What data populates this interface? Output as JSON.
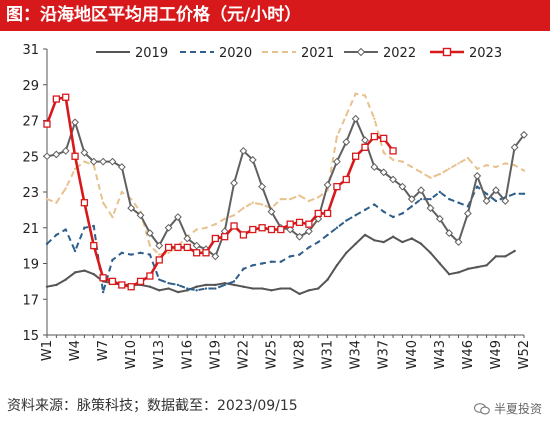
{
  "title": "图：沿海地区平均用工价格（元/小时）",
  "source": "资料来源：脉策科技；数据截至：2023/09/15",
  "watermark": "半夏投资",
  "chart_data": {
    "type": "line",
    "title": "图：沿海地区平均用工价格（元/小时）",
    "xlabel": "",
    "ylabel": "",
    "ylim": [
      15,
      31
    ],
    "yticks": [
      15,
      17,
      19,
      21,
      23,
      25,
      27,
      29,
      31
    ],
    "xlim": [
      1,
      52
    ],
    "xtick_labels": [
      "W1",
      "W4",
      "W7",
      "W10",
      "W13",
      "W16",
      "W19",
      "W22",
      "W25",
      "W28",
      "W31",
      "W34",
      "W37",
      "W40",
      "W43",
      "W46",
      "W49",
      "W52"
    ],
    "legend_position": "top",
    "grid": false,
    "series": [
      {
        "name": "2019",
        "color": "#555555",
        "style": "solid",
        "marker": "none",
        "x": [
          1,
          2,
          3,
          4,
          5,
          6,
          7,
          8,
          9,
          10,
          11,
          12,
          13,
          14,
          15,
          16,
          17,
          18,
          19,
          20,
          21,
          22,
          23,
          24,
          25,
          26,
          27,
          28,
          29,
          30,
          31,
          32,
          33,
          34,
          35,
          36,
          37,
          38,
          39,
          40,
          41,
          42,
          43,
          44,
          45,
          46,
          47,
          48,
          49,
          50,
          51
        ],
        "values": [
          17.7,
          17.8,
          18.1,
          18.5,
          18.6,
          18.4,
          18.0,
          17.9,
          17.8,
          17.8,
          17.8,
          17.7,
          17.5,
          17.6,
          17.4,
          17.5,
          17.7,
          17.8,
          17.8,
          17.9,
          17.8,
          17.7,
          17.6,
          17.6,
          17.5,
          17.6,
          17.6,
          17.3,
          17.5,
          17.6,
          18.1,
          18.9,
          19.6,
          20.1,
          20.6,
          20.3,
          20.2,
          20.5,
          20.2,
          20.4,
          20.1,
          19.6,
          19.0,
          18.4,
          18.5,
          18.7,
          18.8,
          18.9,
          19.4,
          19.4,
          19.7
        ]
      },
      {
        "name": "2020",
        "color": "#2f5f8a",
        "style": "dashed",
        "marker": "none",
        "x": [
          1,
          2,
          3,
          4,
          5,
          6,
          7,
          8,
          9,
          10,
          11,
          12,
          13,
          14,
          15,
          16,
          17,
          18,
          19,
          20,
          21,
          22,
          23,
          24,
          25,
          26,
          27,
          28,
          29,
          30,
          31,
          32,
          33,
          34,
          35,
          36,
          37,
          38,
          39,
          40,
          41,
          42,
          43,
          44,
          45,
          46,
          47,
          48,
          49,
          50,
          51,
          52
        ],
        "values": [
          20.1,
          20.6,
          20.9,
          19.7,
          21.0,
          21.1,
          17.4,
          19.2,
          19.6,
          19.5,
          19.6,
          19.5,
          18.1,
          17.9,
          17.8,
          17.6,
          17.5,
          17.6,
          17.6,
          17.8,
          18.0,
          18.7,
          18.9,
          19.0,
          19.1,
          19.1,
          19.4,
          19.5,
          19.9,
          20.2,
          20.6,
          21.0,
          21.4,
          21.7,
          22.0,
          22.3,
          21.9,
          21.6,
          21.8,
          22.2,
          22.6,
          22.6,
          23.0,
          22.6,
          22.4,
          22.2,
          23.3,
          22.9,
          22.5,
          22.7,
          22.9,
          22.9
        ]
      },
      {
        "name": "2021",
        "color": "#e8c28e",
        "style": "dashed",
        "marker": "none",
        "x": [
          1,
          2,
          3,
          4,
          5,
          6,
          7,
          8,
          9,
          10,
          11,
          12,
          13,
          14,
          15,
          16,
          17,
          18,
          19,
          20,
          21,
          22,
          23,
          24,
          25,
          26,
          27,
          28,
          29,
          30,
          31,
          32,
          33,
          34,
          35,
          36,
          37,
          38,
          39,
          40,
          41,
          42,
          43,
          44,
          45,
          46,
          47,
          48,
          49,
          50,
          51,
          52
        ],
        "values": [
          22.6,
          22.4,
          23.2,
          24.3,
          24.7,
          24.5,
          22.4,
          21.6,
          23.0,
          22.6,
          21.9,
          20.0,
          19.5,
          19.6,
          20.0,
          20.5,
          20.9,
          21.0,
          21.2,
          21.5,
          21.7,
          22.1,
          22.4,
          22.3,
          22.1,
          22.6,
          22.6,
          22.8,
          22.5,
          22.7,
          23.1,
          26.1,
          27.3,
          28.5,
          28.4,
          27.1,
          25.2,
          24.8,
          24.7,
          24.4,
          24.1,
          23.8,
          24.0,
          24.3,
          24.6,
          24.9,
          24.3,
          24.5,
          24.4,
          24.6,
          24.5,
          24.2
        ]
      },
      {
        "name": "2022",
        "color": "#606060",
        "style": "solid",
        "marker": "diamond",
        "x": [
          1,
          2,
          3,
          4,
          5,
          6,
          7,
          8,
          9,
          10,
          11,
          12,
          13,
          14,
          15,
          16,
          17,
          18,
          19,
          20,
          21,
          22,
          23,
          24,
          25,
          26,
          27,
          28,
          29,
          30,
          31,
          32,
          33,
          34,
          35,
          36,
          37,
          38,
          39,
          40,
          41,
          42,
          43,
          44,
          45,
          46,
          47,
          48,
          49,
          50,
          51,
          52
        ],
        "values": [
          25.0,
          25.1,
          25.3,
          26.9,
          25.2,
          24.7,
          24.7,
          24.7,
          24.4,
          22.1,
          21.7,
          20.7,
          20.0,
          21.0,
          21.6,
          20.4,
          20.0,
          19.8,
          19.4,
          20.8,
          23.5,
          25.3,
          24.8,
          23.3,
          21.9,
          21.0,
          20.9,
          20.5,
          20.8,
          21.5,
          23.4,
          24.7,
          25.8,
          27.1,
          25.9,
          24.4,
          24.1,
          23.7,
          23.3,
          22.6,
          23.1,
          22.1,
          21.5,
          20.7,
          20.2,
          21.8,
          23.9,
          22.5,
          23.1,
          22.5,
          25.5,
          26.2
        ]
      },
      {
        "name": "2023",
        "color": "#d7191c",
        "style": "solid",
        "marker": "square",
        "x": [
          1,
          2,
          3,
          4,
          5,
          6,
          7,
          8,
          9,
          10,
          11,
          12,
          13,
          14,
          15,
          16,
          17,
          18,
          19,
          20,
          21,
          22,
          23,
          24,
          25,
          26,
          27,
          28,
          29,
          30,
          31,
          32,
          33,
          34,
          35,
          36,
          37,
          38
        ],
        "values": [
          26.8,
          28.2,
          28.3,
          25.0,
          22.4,
          20.0,
          18.2,
          18.0,
          17.8,
          17.7,
          18.0,
          18.3,
          19.2,
          19.9,
          19.9,
          19.9,
          19.6,
          19.6,
          20.4,
          20.5,
          21.1,
          20.6,
          20.9,
          21.0,
          20.9,
          20.9,
          21.2,
          21.3,
          21.2,
          21.8,
          21.8,
          23.3,
          23.7,
          25.0,
          25.5,
          26.1,
          26.0,
          25.3
        ]
      }
    ]
  }
}
